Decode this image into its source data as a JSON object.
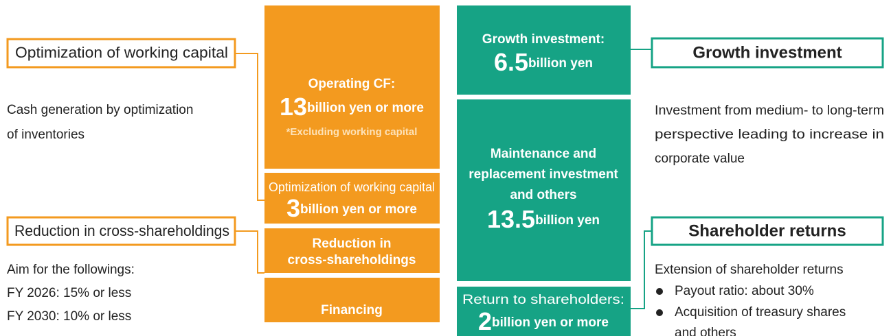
{
  "left": {
    "working_capital": {
      "title": "Optimization of working capital",
      "lines": [
        "Cash generation by optimization",
        "of inventories"
      ]
    },
    "cross_shareholdings": {
      "title": "Reduction in cross-shareholdings",
      "lines": [
        "Aim for the followings:",
        "FY 2026: 15% or less",
        "FY 2030: 10% or less"
      ]
    }
  },
  "sources": {
    "operating_cf": {
      "label": "Operating CF:",
      "amount": "13",
      "unit": "billion yen or more",
      "note": "*Excluding working capital"
    },
    "working_capital": {
      "label": "Optimization of working capital",
      "amount": "3",
      "unit": "billion yen or more"
    },
    "cross_shareholdings": {
      "lines": [
        "Reduction in",
        "cross-shareholdings"
      ]
    },
    "financing": {
      "label": "Financing"
    }
  },
  "uses": {
    "growth": {
      "label": "Growth investment:",
      "amount": "6.5",
      "unit": "billion yen"
    },
    "maintenance": {
      "lines": [
        "Maintenance and",
        "replacement investment",
        "and others"
      ],
      "amount": "13.5",
      "unit": "billion yen"
    },
    "returns": {
      "label": "Return to shareholders:",
      "amount": "2",
      "unit": "billion yen or more"
    }
  },
  "right": {
    "growth": {
      "title": "Growth investment",
      "lines": [
        "Investment from medium- to long-term",
        "perspective leading to increase in",
        "corporate value"
      ]
    },
    "returns": {
      "title": "Shareholder returns",
      "lead": "Extension of shareholder returns",
      "bullets": [
        "Payout ratio: about 30%",
        "Acquisition of treasury shares",
        "and others"
      ]
    }
  }
}
